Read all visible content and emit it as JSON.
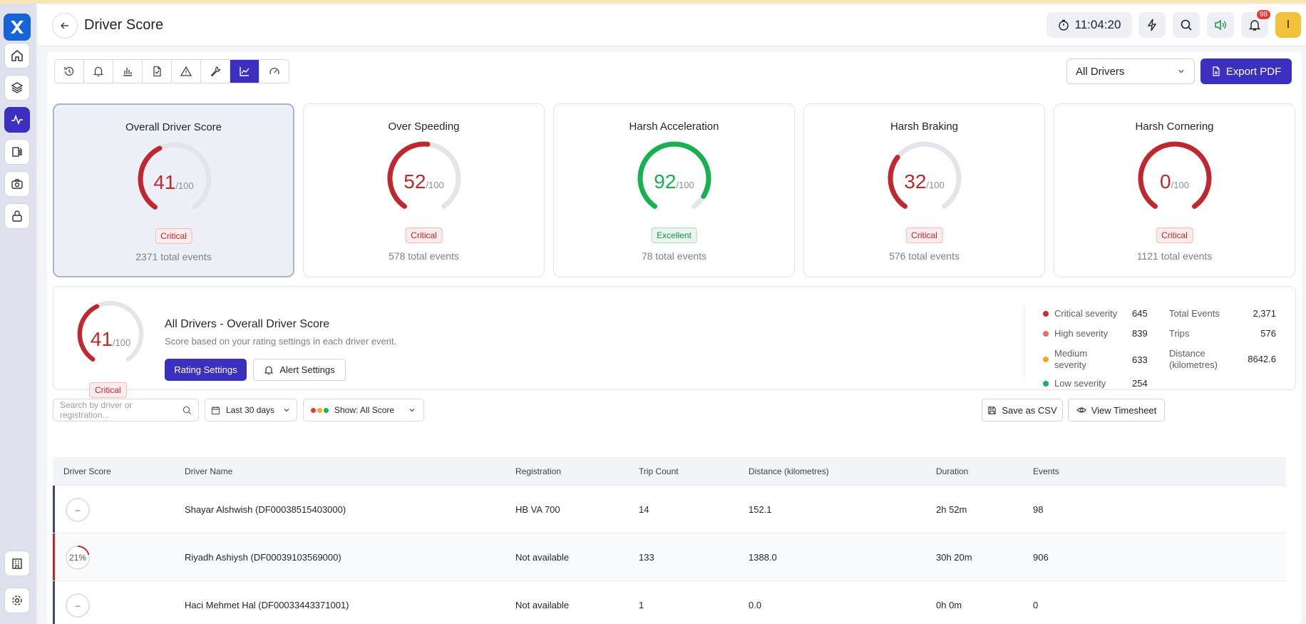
{
  "header": {
    "title": "Driver Score",
    "clock": "11:04:20",
    "notifications_count": "98",
    "avatar_initial": "I"
  },
  "toolbar": {
    "icons": [
      "history-icon",
      "bell-icon",
      "bar-chart-icon",
      "report-file-icon",
      "warning-icon",
      "wrench-icon",
      "line-chart-icon",
      "gauge-icon"
    ],
    "active_index": 6
  },
  "driver_select": {
    "value": "All Drivers"
  },
  "export_label": "Export PDF",
  "cards": [
    {
      "title": "Overall Driver Score",
      "score": "41",
      "max": "/100",
      "status": "Critical",
      "events": "2371 total events",
      "value": 41
    },
    {
      "title": "Over Speeding",
      "score": "52",
      "max": "/100",
      "status": "Critical",
      "events": "578 total events",
      "value": 52
    },
    {
      "title": "Harsh Acceleration",
      "score": "92",
      "max": "/100",
      "status": "Excellent",
      "events": "78 total events",
      "value": 92
    },
    {
      "title": "Harsh Braking",
      "score": "32",
      "max": "/100",
      "status": "Critical",
      "events": "576 total events",
      "value": 32
    },
    {
      "title": "Harsh Cornering",
      "score": "0",
      "max": "/100",
      "status": "Critical",
      "events": "1121 total events",
      "value": 0
    }
  ],
  "summary": {
    "score": "41",
    "max": "/100",
    "value": 41,
    "status": "Critical",
    "title": "All Drivers - Overall Driver Score",
    "subtitle": "Score based on your rating settings in each driver event.",
    "rating_button": "Rating Settings",
    "alert_button": "Alert Settings",
    "severities": [
      {
        "label": "Critical severity",
        "value": "645",
        "color": "#d6262e"
      },
      {
        "label": "High severity",
        "value": "839",
        "color": "#ef6b6b"
      },
      {
        "label": "Medium severity",
        "value": "633",
        "color": "#f2a91d"
      },
      {
        "label": "Low severity",
        "value": "254",
        "color": "#1cb35a"
      }
    ],
    "stats": [
      {
        "label": "Total Events",
        "value": "2,371"
      },
      {
        "label": "Trips",
        "value": "576"
      },
      {
        "label": "Distance (kilometres)",
        "value": "8642.6"
      }
    ]
  },
  "filters": {
    "search_placeholder": "Search by driver or registration...",
    "date_range": "Last 30 days",
    "show": "Show: All Score",
    "save_csv": "Save as CSV",
    "view_timesheet": "View Timesheet"
  },
  "table": {
    "columns": [
      "Driver Score",
      "Driver Name",
      "Registration",
      "Trip Count",
      "Distance (kilometres)",
      "Duration",
      "Events"
    ],
    "rows": [
      {
        "score": "–",
        "score_value": null,
        "name": "Shayar Alshwish (DF00038515403000)",
        "registration": "HB VA 700",
        "trips": "14",
        "distance": "152.1",
        "duration": "2h 52m",
        "events": "98",
        "accent": "#3a4a66"
      },
      {
        "score": "21%",
        "score_value": 21,
        "name": "Riyadh Ashiysh (DF00039103569000)",
        "registration": "Not available",
        "trips": "133",
        "distance": "1388.0",
        "duration": "30h 20m",
        "events": "906",
        "accent": "#c0282f"
      },
      {
        "score": "–",
        "score_value": null,
        "name": "Haci Mehmet Hal (DF00033443371001)",
        "registration": "Not available",
        "trips": "1",
        "distance": "0.0",
        "duration": "0h 0m",
        "events": "0",
        "accent": "#3a4a66"
      }
    ]
  },
  "colors": {
    "accent": "#3b2fc0",
    "critical": "#c0282f",
    "excellent": "#17b14f",
    "track": "#e4e5ea"
  }
}
